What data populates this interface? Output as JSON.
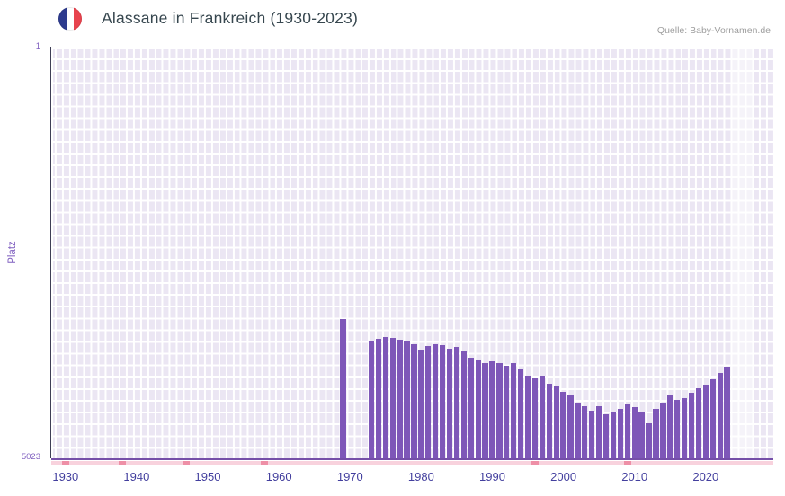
{
  "header": {
    "title": "Alassane in Frankreich (1930-2023)",
    "source": "Quelle: Baby-Vornamen.de"
  },
  "flag": {
    "colors": [
      "#2d3b8e",
      "#ffffff",
      "#e8434e"
    ]
  },
  "chart_data": {
    "type": "bar",
    "title": "Alassane in Frankreich (1930-2023)",
    "xlabel": "",
    "ylabel": "Platz",
    "y_axis": {
      "min": 1,
      "max": 5023,
      "inverted": true,
      "top_tick": "1",
      "bottom_tick": "5023"
    },
    "x_axis": {
      "range": [
        1928,
        2029.5
      ],
      "tick_labels": [
        "1930",
        "1940",
        "1950",
        "1960",
        "1970",
        "1980",
        "1990",
        "2000",
        "2010",
        "2020"
      ]
    },
    "grid": true,
    "legend": "none",
    "colors": {
      "bar": "#7e57b8",
      "plot_bg": "#ebe6f3",
      "grid": "#ffffff",
      "axis_line": "#754fa8",
      "spine": "#3e3e55",
      "tick_label": "#433f9e",
      "rank_label": "#8060c0",
      "bottom_band": "#f8d2dd",
      "bottom_mark": "#ee8fa6",
      "band_light": "rgba(255,255,255,0.5)",
      "title": "#37474f",
      "source": "#9e9e9e"
    },
    "highlight_band": {
      "from_year": 2023.7,
      "to_year": 2026.8
    },
    "bottom_marks_years": [
      1930,
      1938,
      1947,
      1958,
      1996,
      2009
    ],
    "points": [
      [
        1969,
        3320
      ],
      [
        1973,
        3600
      ],
      [
        1974,
        3560
      ],
      [
        1975,
        3540
      ],
      [
        1976,
        3550
      ],
      [
        1977,
        3570
      ],
      [
        1978,
        3600
      ],
      [
        1979,
        3630
      ],
      [
        1980,
        3700
      ],
      [
        1981,
        3650
      ],
      [
        1982,
        3630
      ],
      [
        1983,
        3640
      ],
      [
        1984,
        3690
      ],
      [
        1985,
        3660
      ],
      [
        1986,
        3720
      ],
      [
        1987,
        3790
      ],
      [
        1988,
        3830
      ],
      [
        1989,
        3860
      ],
      [
        1990,
        3840
      ],
      [
        1991,
        3860
      ],
      [
        1992,
        3890
      ],
      [
        1993,
        3860
      ],
      [
        1994,
        3940
      ],
      [
        1995,
        4010
      ],
      [
        1996,
        4050
      ],
      [
        1997,
        4030
      ],
      [
        1998,
        4110
      ],
      [
        1999,
        4150
      ],
      [
        2000,
        4210
      ],
      [
        2001,
        4250
      ],
      [
        2002,
        4340
      ],
      [
        2003,
        4390
      ],
      [
        2004,
        4440
      ],
      [
        2005,
        4390
      ],
      [
        2006,
        4490
      ],
      [
        2007,
        4460
      ],
      [
        2008,
        4420
      ],
      [
        2009,
        4370
      ],
      [
        2010,
        4400
      ],
      [
        2011,
        4450
      ],
      [
        2012,
        4590
      ],
      [
        2013,
        4420
      ],
      [
        2014,
        4340
      ],
      [
        2015,
        4260
      ],
      [
        2016,
        4310
      ],
      [
        2017,
        4290
      ],
      [
        2018,
        4220
      ],
      [
        2019,
        4170
      ],
      [
        2020,
        4120
      ],
      [
        2021,
        4060
      ],
      [
        2022,
        3980
      ],
      [
        2023,
        3900
      ]
    ]
  }
}
